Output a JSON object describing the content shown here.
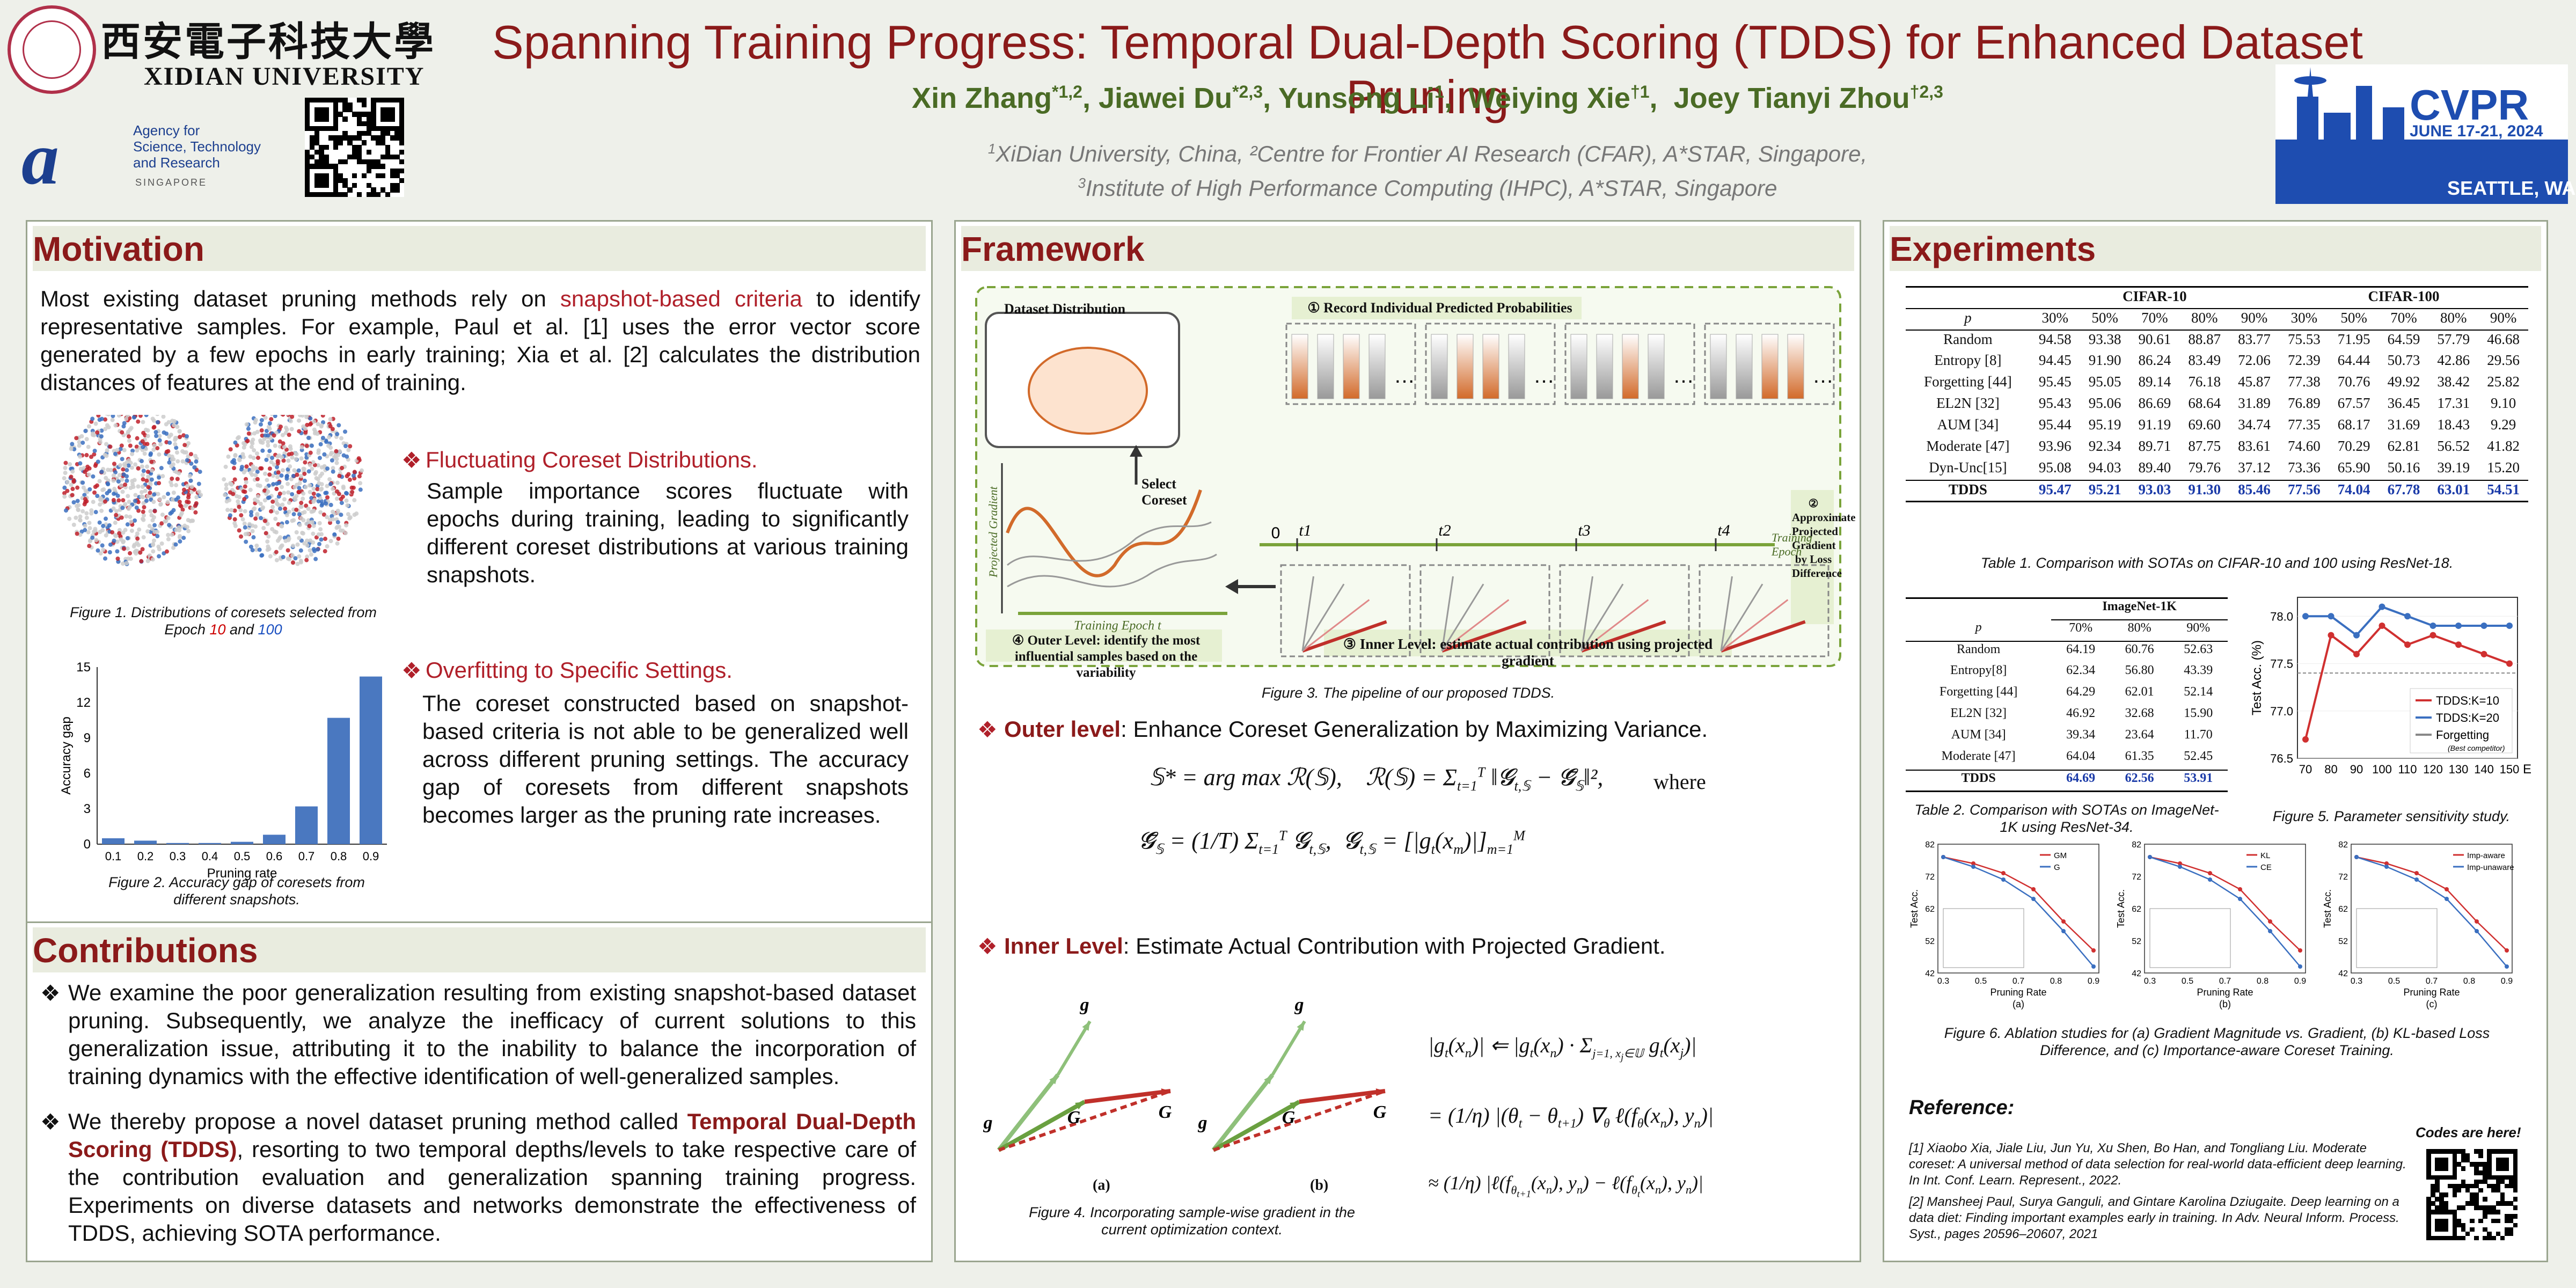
{
  "header": {
    "xidian_cn": "西安電子科技大學",
    "xidian_en": "XIDIAN UNIVERSITY",
    "astar": [
      "Agency for",
      "Science, Technology",
      "and Research"
    ],
    "astar_country": "SINGAPORE",
    "title": "Spanning Training Progress: Temporal Dual-Depth Scoring (TDDS) for Enhanced Dataset Pruning",
    "authors": [
      {
        "name": "Xin Zhang",
        "sup": "*1,2"
      },
      {
        "name": "Jiawei Du",
        "sup": "*2,3"
      },
      {
        "name": "Yunsong Li",
        "sup": "1"
      },
      {
        "name": "Weiying Xie",
        "sup": "†1"
      },
      {
        "name": "Joey Tianyi Zhou",
        "sup": "†2,3"
      }
    ],
    "affil1": "XiDian University, China,  ²Centre for Frontier AI Research (CFAR), A*STAR,  Singapore,",
    "affil2": "Institute of High Performance Computing (IHPC), A*STAR,  Singapore",
    "cvpr": "CVPR",
    "cvpr_date": "JUNE 17-21, 2024",
    "cvpr_city": "SEATTLE, WA"
  },
  "motivation": {
    "title": "Motivation",
    "intro_a": "Most existing dataset pruning methods rely on ",
    "intro_red": "snapshot-based criteria",
    "intro_b": " to identify representative samples. For example, Paul et al. [1] uses the error vector score generated by a few epochs in early training; Xia et al. [2] calculates the distribution distances of features at the end of training.",
    "fig1_caption": "Figure 1. Distributions of coresets selected from",
    "fig1_caption2": "Epoch ",
    "fig1_e10": "10",
    "fig1_and": " and ",
    "fig1_e100": "100",
    "point1_title": "Fluctuating Coreset Distributions.",
    "point1_text": "Sample importance scores fluctuate with epochs during training, leading to significantly different coreset distributions at various training snapshots.",
    "point2_title": "Overfitting to Specific Settings.",
    "point2_text": "The coreset constructed based on snapshot-based criteria is not able to be generalized well across different pruning settings. The accuracy gap of coresets from different snapshots becomes larger as the pruning rate increases.",
    "fig2_caption": "Figure 2. Accuracy gap of coresets from different snapshots."
  },
  "chart_data": {
    "type": "bar",
    "categories": [
      "0.1",
      "0.2",
      "0.3",
      "0.4",
      "0.5",
      "0.6",
      "0.7",
      "0.8",
      "0.9"
    ],
    "values": [
      0.5,
      0.3,
      0.1,
      0.1,
      0.2,
      0.8,
      3.2,
      10.7,
      14.2
    ],
    "xlabel": "Pruning rate",
    "ylabel": "Accuracy gap",
    "yticks": [
      "0",
      "3",
      "6",
      "9",
      "12",
      "15"
    ],
    "ylim": [
      0,
      15
    ],
    "color": "#4a78c0"
  },
  "contributions": {
    "title": "Contributions",
    "c1": "We examine the poor generalization resulting from existing snapshot-based dataset pruning. Subsequently, we analyze the inefficacy of current solutions to this generalization issue, attributing it to the inability to balance the incorporation of training dynamics with the effective identification of well-generalized samples.",
    "c2_a": "We thereby propose a novel dataset pruning method called ",
    "c2_red": "Temporal Dual-Depth Scoring (TDDS)",
    "c2_b": ", resorting to two temporal depths/levels to take respective care of the contribution evaluation and generalization spanning training progress. Experiments on diverse datasets and networks demonstrate the effectiveness of TDDS, achieving SOTA performance."
  },
  "framework": {
    "title": "Framework",
    "dd": "Dataset Distribution",
    "select": "Select Coreset",
    "step1": "① Record Individual Predicted Probabilities",
    "step2": "② Approximate Projected Gradient by Loss Difference",
    "step3": "③ Inner Level: estimate actual contribution using projected gradient",
    "step4": "④ Outer Level: identify the most influential samples based on the variability",
    "pg": "Projected Gradient",
    "te": "Training Epoch t",
    "tr": "Training Epoch",
    "fig3": "Figure 3. The pipeline of our proposed TDDS.",
    "outer_title": "Outer level",
    "outer_text": ": Enhance Coreset Generalization by Maximizing Variance.",
    "inner_title": "Inner Level",
    "inner_text": ": Estimate Actual Contribution with Projected Gradient.",
    "where": "where",
    "fig4": "Figure 4. Incorporating sample-wise gradient in the current optimization context.",
    "fa": "(a)",
    "fb": "(b)"
  },
  "experiments": {
    "title": "Experiments",
    "t1_head1": "CIFAR-10",
    "t1_head2": "CIFAR-100",
    "t1_cols": [
      "30%",
      "50%",
      "70%",
      "80%",
      "90%",
      "30%",
      "50%",
      "70%",
      "80%",
      "90%"
    ],
    "t1_rows": [
      {
        "name": "Random",
        "v": [
          "94.58",
          "93.38",
          "90.61",
          "88.87",
          "83.77",
          "75.53",
          "71.95",
          "64.59",
          "57.79",
          "46.68"
        ]
      },
      {
        "name": "Entropy [8]",
        "v": [
          "94.45",
          "91.90",
          "86.24",
          "83.49",
          "72.06",
          "72.39",
          "64.44",
          "50.73",
          "42.86",
          "29.56"
        ]
      },
      {
        "name": "Forgetting [44]",
        "v": [
          "95.45",
          "95.05",
          "89.14",
          "76.18",
          "45.87",
          "77.38",
          "70.76",
          "49.92",
          "38.42",
          "25.82"
        ]
      },
      {
        "name": "EL2N [32]",
        "v": [
          "95.43",
          "95.06",
          "86.69",
          "68.64",
          "31.89",
          "76.89",
          "67.57",
          "36.45",
          "17.31",
          "9.10"
        ]
      },
      {
        "name": "AUM [34]",
        "v": [
          "95.44",
          "95.19",
          "91.19",
          "69.60",
          "34.74",
          "77.35",
          "68.17",
          "31.69",
          "18.43",
          "9.29"
        ]
      },
      {
        "name": "Moderate [47]",
        "v": [
          "93.96",
          "92.34",
          "89.71",
          "87.75",
          "83.61",
          "74.60",
          "70.29",
          "62.81",
          "56.52",
          "41.82"
        ]
      },
      {
        "name": "Dyn-Unc[15]",
        "v": [
          "95.08",
          "94.03",
          "89.40",
          "79.76",
          "37.12",
          "73.36",
          "65.90",
          "50.16",
          "39.19",
          "15.20"
        ]
      },
      {
        "name": "TDDS",
        "v": [
          "95.47",
          "95.21",
          "93.03",
          "91.30",
          "85.46",
          "77.56",
          "74.04",
          "67.78",
          "63.01",
          "54.51"
        ]
      }
    ],
    "t1_caption": "Table 1. Comparison with SOTAs on CIFAR-10 and 100 using ResNet-18.",
    "t2_head": "ImageNet-1K",
    "t2_cols": [
      "70%",
      "80%",
      "90%"
    ],
    "t2_rows": [
      {
        "name": "Random",
        "v": [
          "64.19",
          "60.76",
          "52.63"
        ]
      },
      {
        "name": "Entropy[8]",
        "v": [
          "62.34",
          "56.80",
          "43.39"
        ]
      },
      {
        "name": "Forgetting [44]",
        "v": [
          "64.29",
          "62.01",
          "52.14"
        ]
      },
      {
        "name": "EL2N [32]",
        "v": [
          "46.92",
          "32.68",
          "15.90"
        ]
      },
      {
        "name": "AUM [34]",
        "v": [
          "39.34",
          "23.64",
          "11.70"
        ]
      },
      {
        "name": "Moderate [47]",
        "v": [
          "64.04",
          "61.35",
          "52.45"
        ]
      },
      {
        "name": "TDDS",
        "v": [
          "64.69",
          "62.56",
          "53.91"
        ]
      }
    ],
    "p": "p",
    "t2_caption": "Table 2. Comparison with SOTAs on ImageNet-1K using ResNet-34.",
    "fig5_caption": "Figure 5. Parameter sensitivity study.",
    "fig5": {
      "ylabel": "Test Acc. (%)",
      "yticks": [
        "76.5",
        "77.0",
        "77.5",
        "78.0"
      ],
      "xticks": [
        "70",
        "80",
        "90",
        "100",
        "110",
        "120",
        "130",
        "140",
        "150"
      ],
      "xunit": "E",
      "k10": [
        76.7,
        77.8,
        77.6,
        77.9,
        77.7,
        77.8,
        77.7,
        77.6,
        77.5
      ],
      "k20": [
        78.0,
        78.0,
        77.8,
        78.1,
        78.0,
        77.9,
        77.9,
        77.9,
        77.9
      ],
      "fg": 77.4,
      "legend": [
        "TDDS:K=10",
        "TDDS:K=20",
        "Forgetting"
      ],
      "legend_note": "(Best competitor)"
    },
    "fig6_caption": "Figure 6. Ablation studies for (a) Gradient Magnitude vs. Gradient, (b) KL-based Loss Difference, and (c) Importance-aware Coreset Training.",
    "fig6": [
      {
        "label": "(a)",
        "legend": [
          "GM",
          "G"
        ]
      },
      {
        "label": "(b)",
        "legend": [
          "KL",
          "CE"
        ]
      },
      {
        "label": "(c)",
        "legend": [
          "Imp-aware",
          "Imp-unaware"
        ]
      }
    ],
    "fig6_x": "Pruning Rate",
    "fig6_y": "Test Acc.",
    "ref_title": "Reference:",
    "codes": "Codes are here!",
    "ref1": "[1] Xiaobo Xia, Jiale Liu, Jun Yu, Xu Shen, Bo Han, and Tongliang Liu. Moderate coreset: A universal method of data selection for real-world data-efficient deep learning. In Int. Conf. Learn. Represent., 2022.",
    "ref2": "[2] Mansheej Paul, Surya Ganguli, and Gintare Karolina Dziugaite. Deep learning on a data diet: Finding important examples early in training. In Adv. Neural Inform. Process. Syst., pages 20596–20607, 2021"
  }
}
